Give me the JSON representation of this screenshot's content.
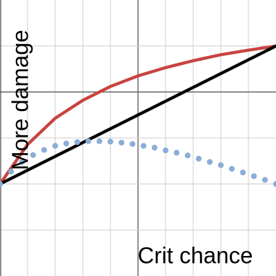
{
  "chart_data": {
    "type": "line",
    "xlabel": "Crit chance",
    "ylabel": "More damage",
    "xlim": [
      0,
      10
    ],
    "ylim": [
      -2,
      4
    ],
    "xticks": [
      1,
      2,
      3,
      4,
      5,
      6,
      7,
      8,
      9
    ],
    "yticks": [
      -1,
      0,
      1,
      2,
      3
    ],
    "x_axis_at": 2,
    "y_axis_at": 5,
    "grid": true,
    "x": [
      0,
      1,
      2,
      3,
      4,
      5,
      6,
      7,
      8,
      9,
      10
    ],
    "series": [
      {
        "color": "#c74440",
        "style": "solid",
        "values": [
          0,
          0.86,
          1.43,
          1.82,
          2.12,
          2.35,
          2.53,
          2.68,
          2.81,
          2.91,
          3
        ]
      },
      {
        "color": "#000000",
        "style": "solid",
        "values": [
          0,
          0.3,
          0.6,
          0.9,
          1.2,
          1.5,
          1.8,
          2.1,
          2.4,
          2.7,
          3
        ]
      },
      {
        "color": "#8aaed6",
        "style": "dotted",
        "x": [
          0,
          0.4,
          0.8,
          1.2,
          1.6,
          2,
          2.4,
          2.8,
          3.2,
          3.6,
          4,
          4.4,
          4.8,
          5.2,
          5.6,
          6,
          6.4,
          6.8,
          7.2,
          7.6,
          8,
          8.4,
          8.8,
          9.2,
          9.6,
          10
        ],
        "values": [
          0,
          0.27,
          0.48,
          0.63,
          0.74,
          0.83,
          0.88,
          0.91,
          0.93,
          0.93,
          0.92,
          0.9,
          0.87,
          0.83,
          0.79,
          0.73,
          0.68,
          0.62,
          0.55,
          0.48,
          0.41,
          0.33,
          0.25,
          0.17,
          0.09,
          0
        ]
      }
    ]
  }
}
